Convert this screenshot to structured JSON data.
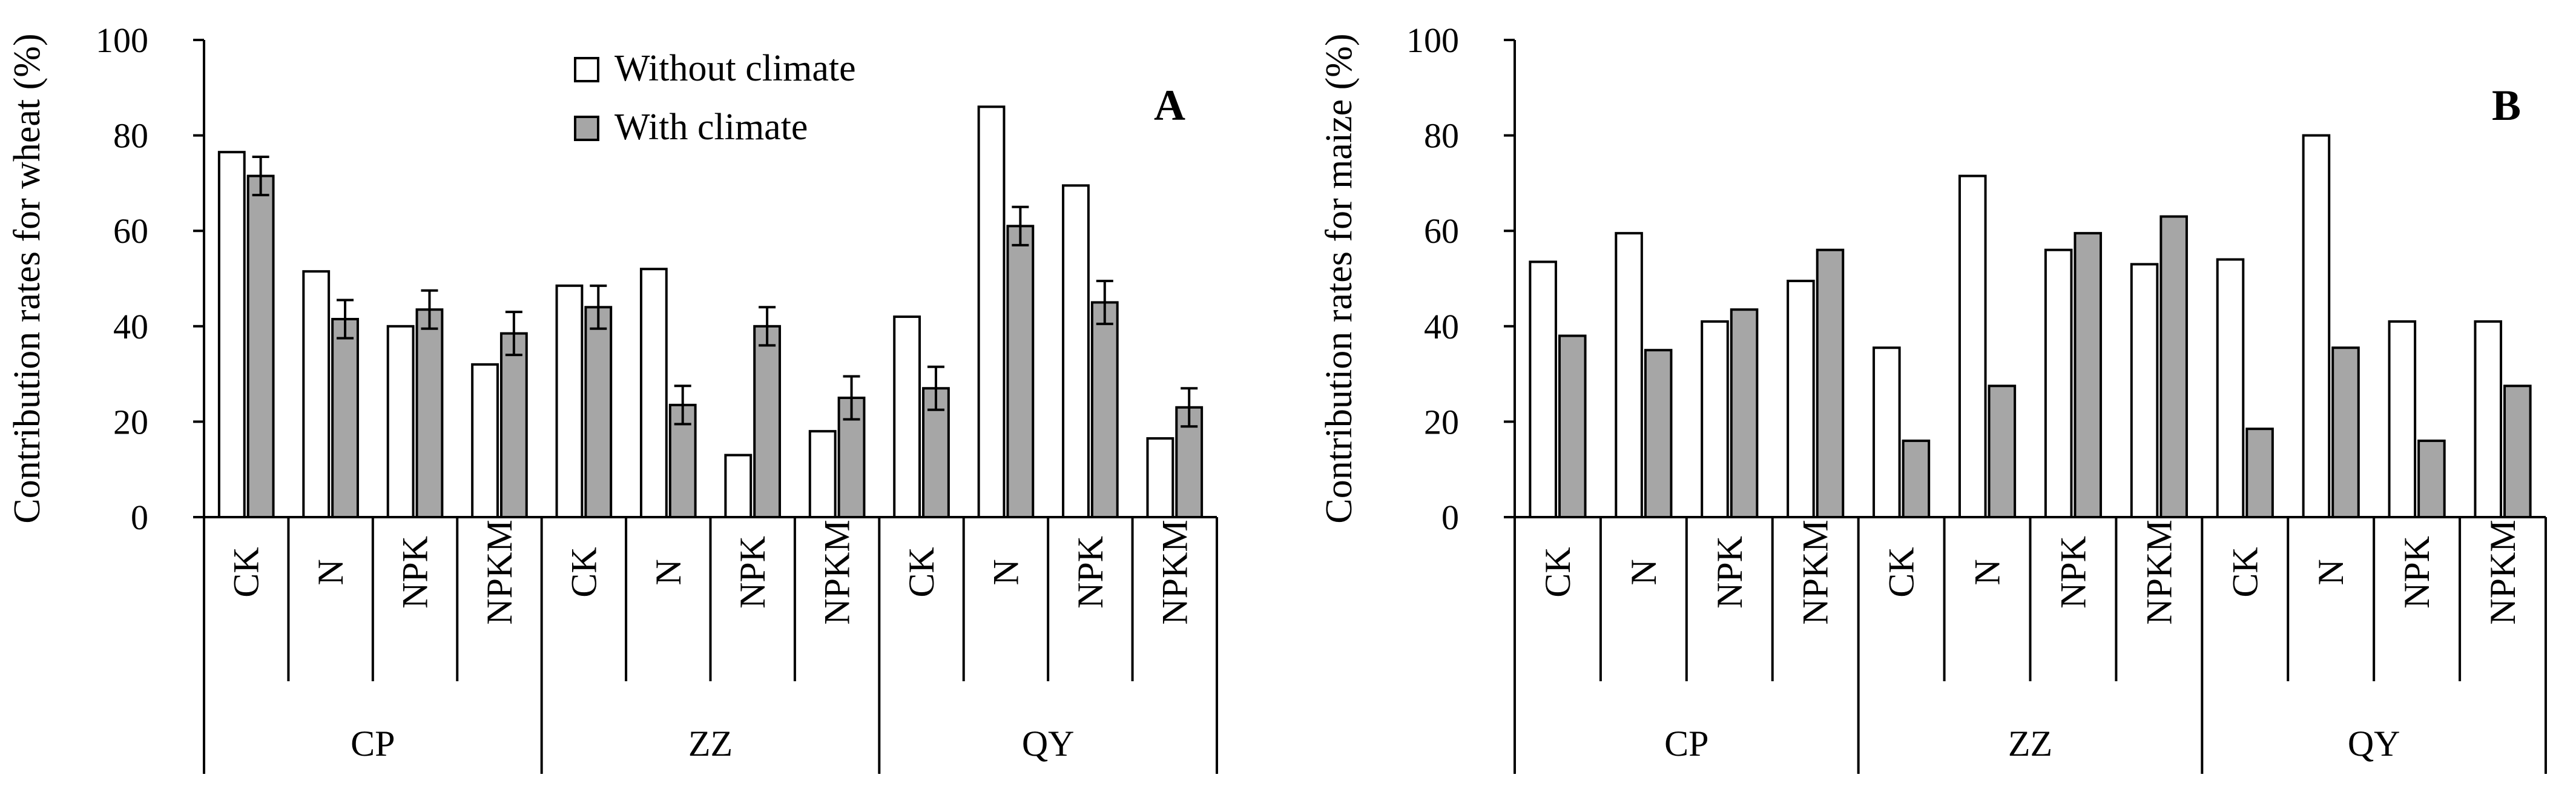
{
  "colors": {
    "without": "#ffffff",
    "with": "#a6a6a6",
    "stroke": "#000000"
  },
  "chart_data": [
    {
      "type": "bar",
      "panel_label": "A",
      "ylabel": "Contribution  rates for wheat  (%)",
      "ylim": [
        0,
        100
      ],
      "yticks": [
        "0",
        "20",
        "40",
        "60",
        "80",
        "100"
      ],
      "legend": [
        "Without climate",
        "With climate"
      ],
      "legend_position": "top-center",
      "groups": [
        "CP",
        "ZZ",
        "QY"
      ],
      "categories": [
        "CK",
        "N",
        "NPK",
        "NPKM"
      ],
      "series": [
        {
          "name": "Without climate",
          "values": [
            [
              76.5,
              51.5,
              40.0,
              32.0
            ],
            [
              48.5,
              52.0,
              13.0,
              18.0
            ],
            [
              42.0,
              86.0,
              69.5,
              16.5
            ]
          ]
        },
        {
          "name": "With climate",
          "values": [
            [
              71.5,
              41.5,
              43.5,
              38.5
            ],
            [
              44.0,
              23.5,
              40.0,
              25.0
            ],
            [
              27.0,
              61.0,
              45.0,
              23.0
            ]
          ],
          "error": [
            [
              4.0,
              4.0,
              4.0,
              4.5
            ],
            [
              4.5,
              4.0,
              4.0,
              4.5
            ],
            [
              4.5,
              4.0,
              4.5,
              4.0
            ]
          ]
        }
      ]
    },
    {
      "type": "bar",
      "panel_label": "B",
      "ylabel": "Contribution  rates for maize (%)",
      "ylim": [
        0,
        100
      ],
      "yticks": [
        "0",
        "20",
        "40",
        "60",
        "80",
        "100"
      ],
      "groups": [
        "CP",
        "ZZ",
        "QY"
      ],
      "categories": [
        "CK",
        "N",
        "NPK",
        "NPKM"
      ],
      "series": [
        {
          "name": "Without climate",
          "values": [
            [
              53.5,
              59.5,
              41.0,
              49.5
            ],
            [
              35.5,
              71.5,
              56.0,
              53.0
            ],
            [
              54.0,
              80.0,
              41.0,
              41.0
            ]
          ]
        },
        {
          "name": "With climate",
          "values": [
            [
              38.0,
              35.0,
              43.5,
              56.0
            ],
            [
              16.0,
              27.5,
              59.5,
              63.0
            ],
            [
              18.5,
              35.5,
              16.0,
              27.5
            ]
          ]
        }
      ]
    }
  ]
}
